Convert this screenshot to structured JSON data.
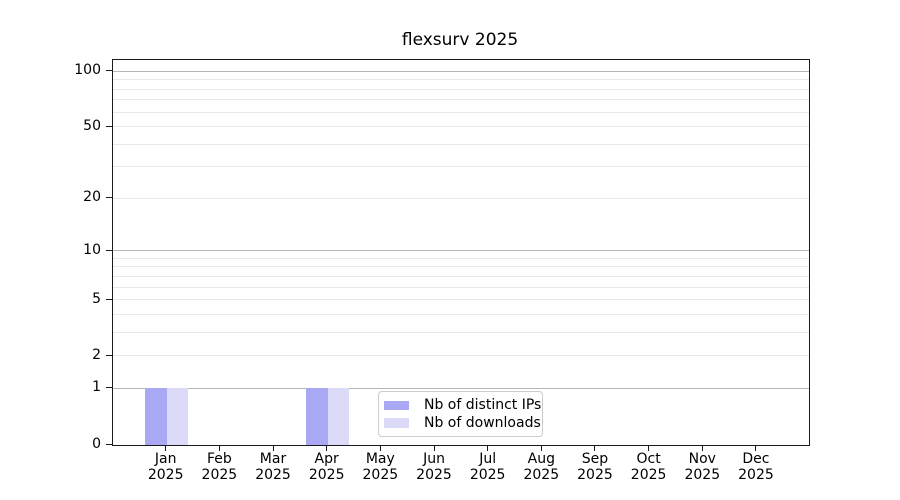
{
  "chart_data": {
    "type": "bar",
    "title": "flexsurv 2025",
    "x_categories": [
      "Jan",
      "Feb",
      "Mar",
      "Apr",
      "May",
      "Jun",
      "Jul",
      "Aug",
      "Sep",
      "Oct",
      "Nov",
      "Dec"
    ],
    "x_year_label": "2025",
    "series": [
      {
        "name": "Nb of distinct IPs",
        "color": "#a9a9f3",
        "values": [
          1,
          0,
          0,
          1,
          0,
          0,
          0,
          0,
          0,
          0,
          0,
          0
        ]
      },
      {
        "name": "Nb of downloads",
        "color": "#dbdbf7",
        "values": [
          1,
          0,
          0,
          1,
          0,
          0,
          0,
          0,
          0,
          0,
          0,
          0
        ]
      }
    ],
    "y_axis": {
      "scale": "log1p",
      "tick_values": [
        0,
        1,
        2,
        5,
        10,
        20,
        50,
        100
      ],
      "range": [
        0,
        116
      ],
      "grid_major_values": [
        1,
        10,
        100
      ],
      "grid_minor_values": [
        2,
        3,
        4,
        5,
        6,
        7,
        8,
        9,
        20,
        30,
        40,
        50,
        60,
        70,
        80,
        90
      ]
    },
    "legend": {
      "position": "lower center",
      "entries": [
        "Nb of distinct IPs",
        "Nb of downloads"
      ]
    },
    "colors": {
      "grid_major": "#b5b5b5",
      "grid_minor": "#e9e9e9",
      "spine": "#1a1a1a",
      "text": "#000000"
    }
  }
}
